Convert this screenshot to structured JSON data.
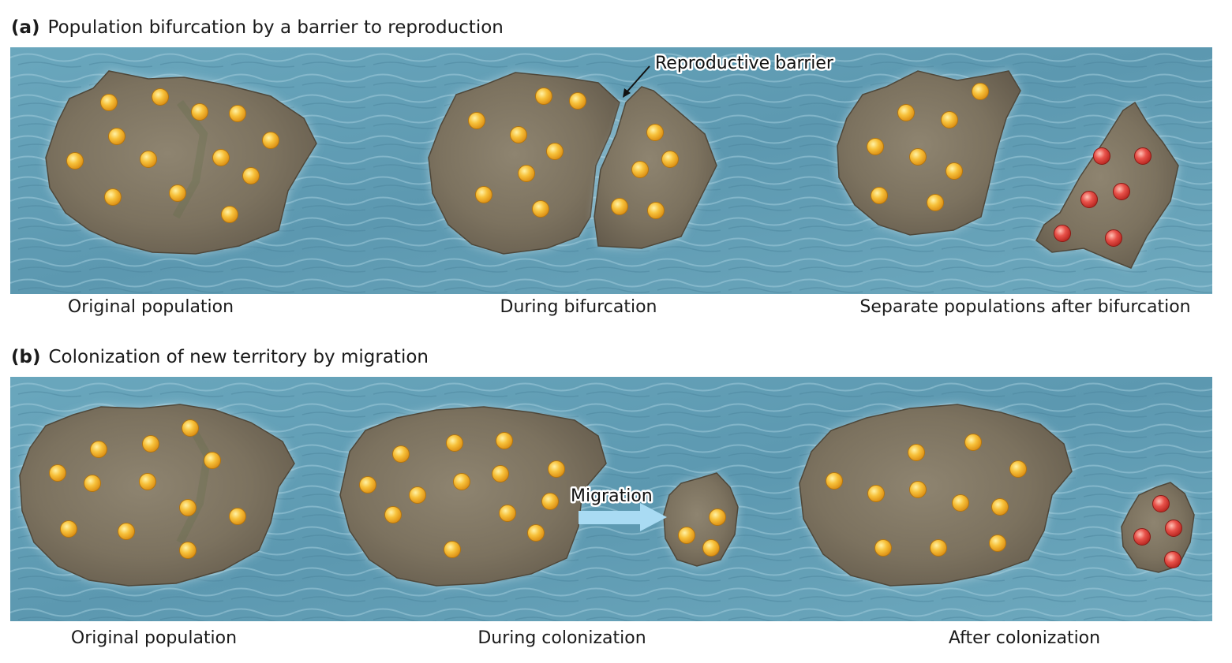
{
  "panel_a": {
    "tag": "(a)",
    "title": "Population bifurcation by a barrier to reproduction",
    "annotation": "Reproductive barrier",
    "captions": [
      "Original population",
      "During bifurcation",
      "Separate populations after bifurcation"
    ]
  },
  "panel_b": {
    "tag": "(b)",
    "title": "Colonization of new territory by migration",
    "annotation": "Migration",
    "captions": [
      "Original population",
      "During colonization",
      "After colonization"
    ]
  },
  "colors": {
    "water": "#5f9db5",
    "water_light": "#8ec0d2",
    "land": "#8a7e6a",
    "land_dark": "#6e6455",
    "original_individual": "#f5b428",
    "new_population_individual": "#e0403a",
    "migration_arrow": "#a9dbf3"
  }
}
